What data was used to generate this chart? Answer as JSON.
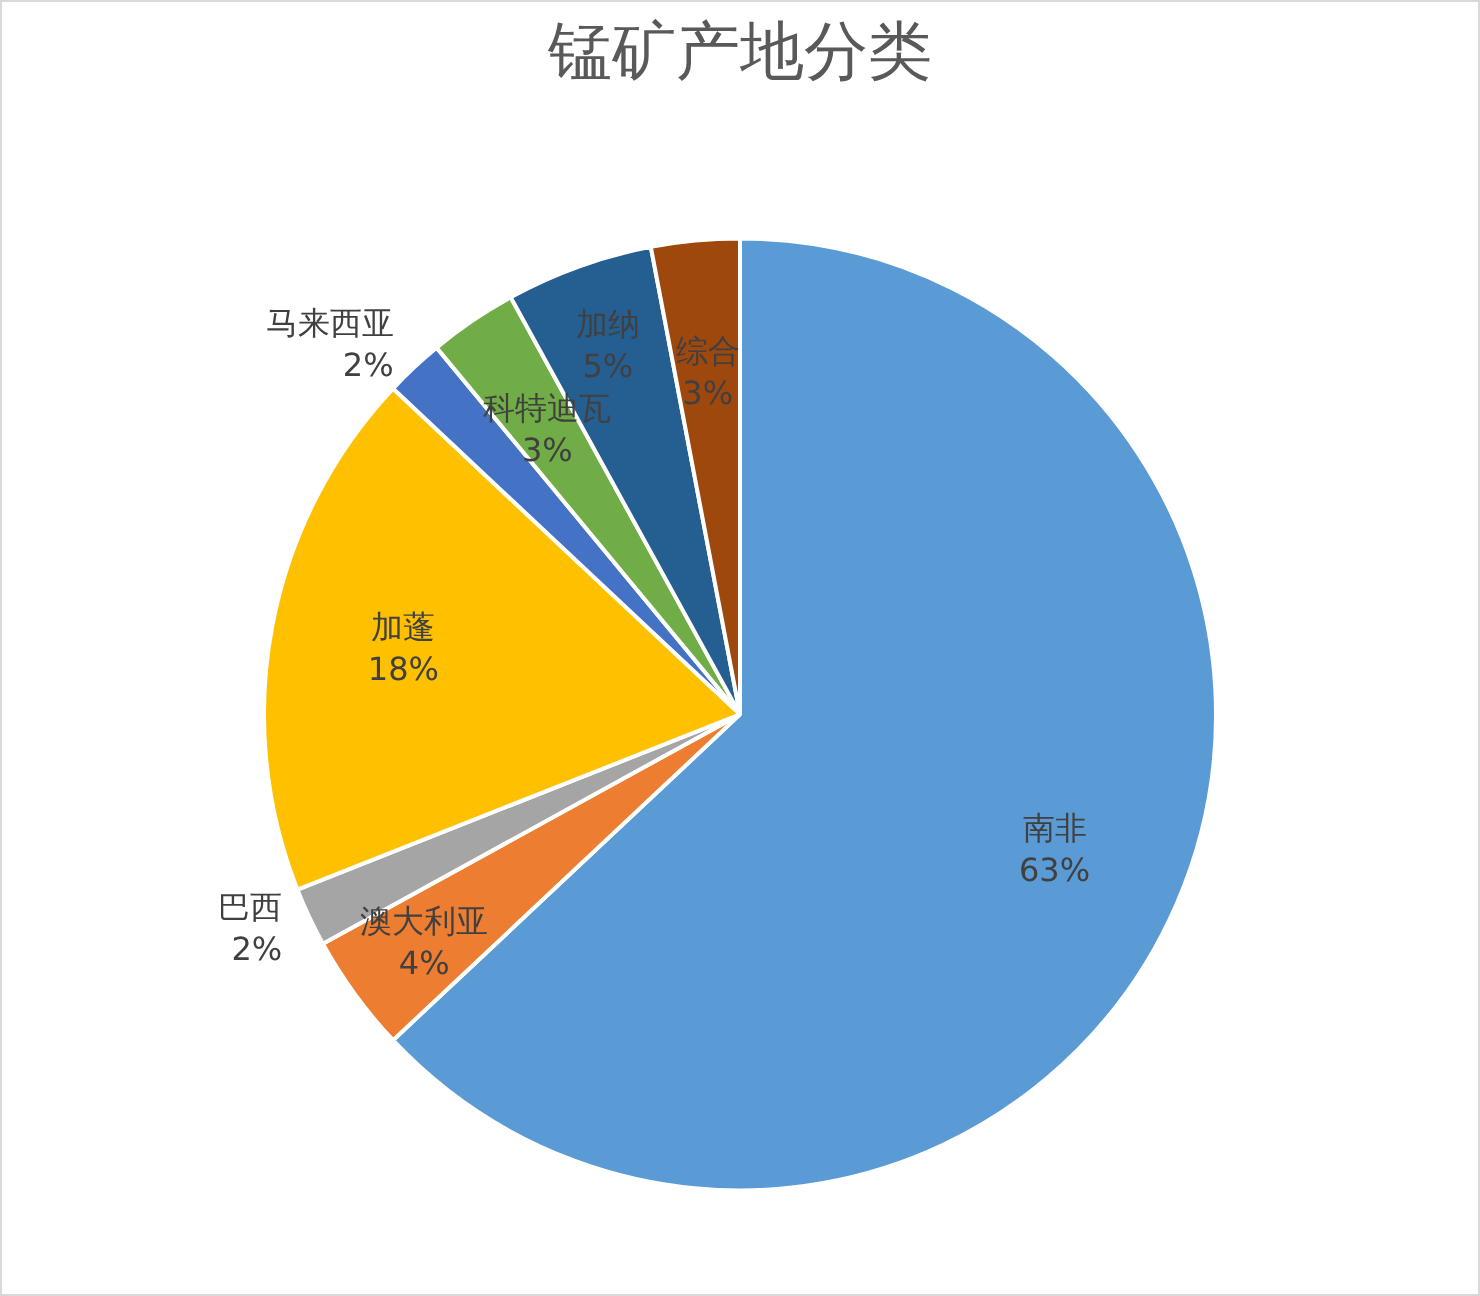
{
  "chart_data": {
    "type": "pie",
    "title": "锰矿产地分类",
    "categories": [
      "南非",
      "澳大利亚",
      "巴西",
      "加蓬",
      "马来西亚",
      "科特迪瓦",
      "加纳",
      "综合"
    ],
    "values": [
      63,
      4,
      2,
      18,
      2,
      3,
      5,
      3
    ],
    "colors": [
      "#5b9bd5",
      "#ed7d31",
      "#a5a5a5",
      "#ffc000",
      "#4472c4",
      "#70ad47",
      "#255e91",
      "#9e480e"
    ],
    "value_labels": [
      "63%",
      "4%",
      "2%",
      "18%",
      "2%",
      "3%",
      "5%",
      "3%"
    ],
    "legend": false
  }
}
